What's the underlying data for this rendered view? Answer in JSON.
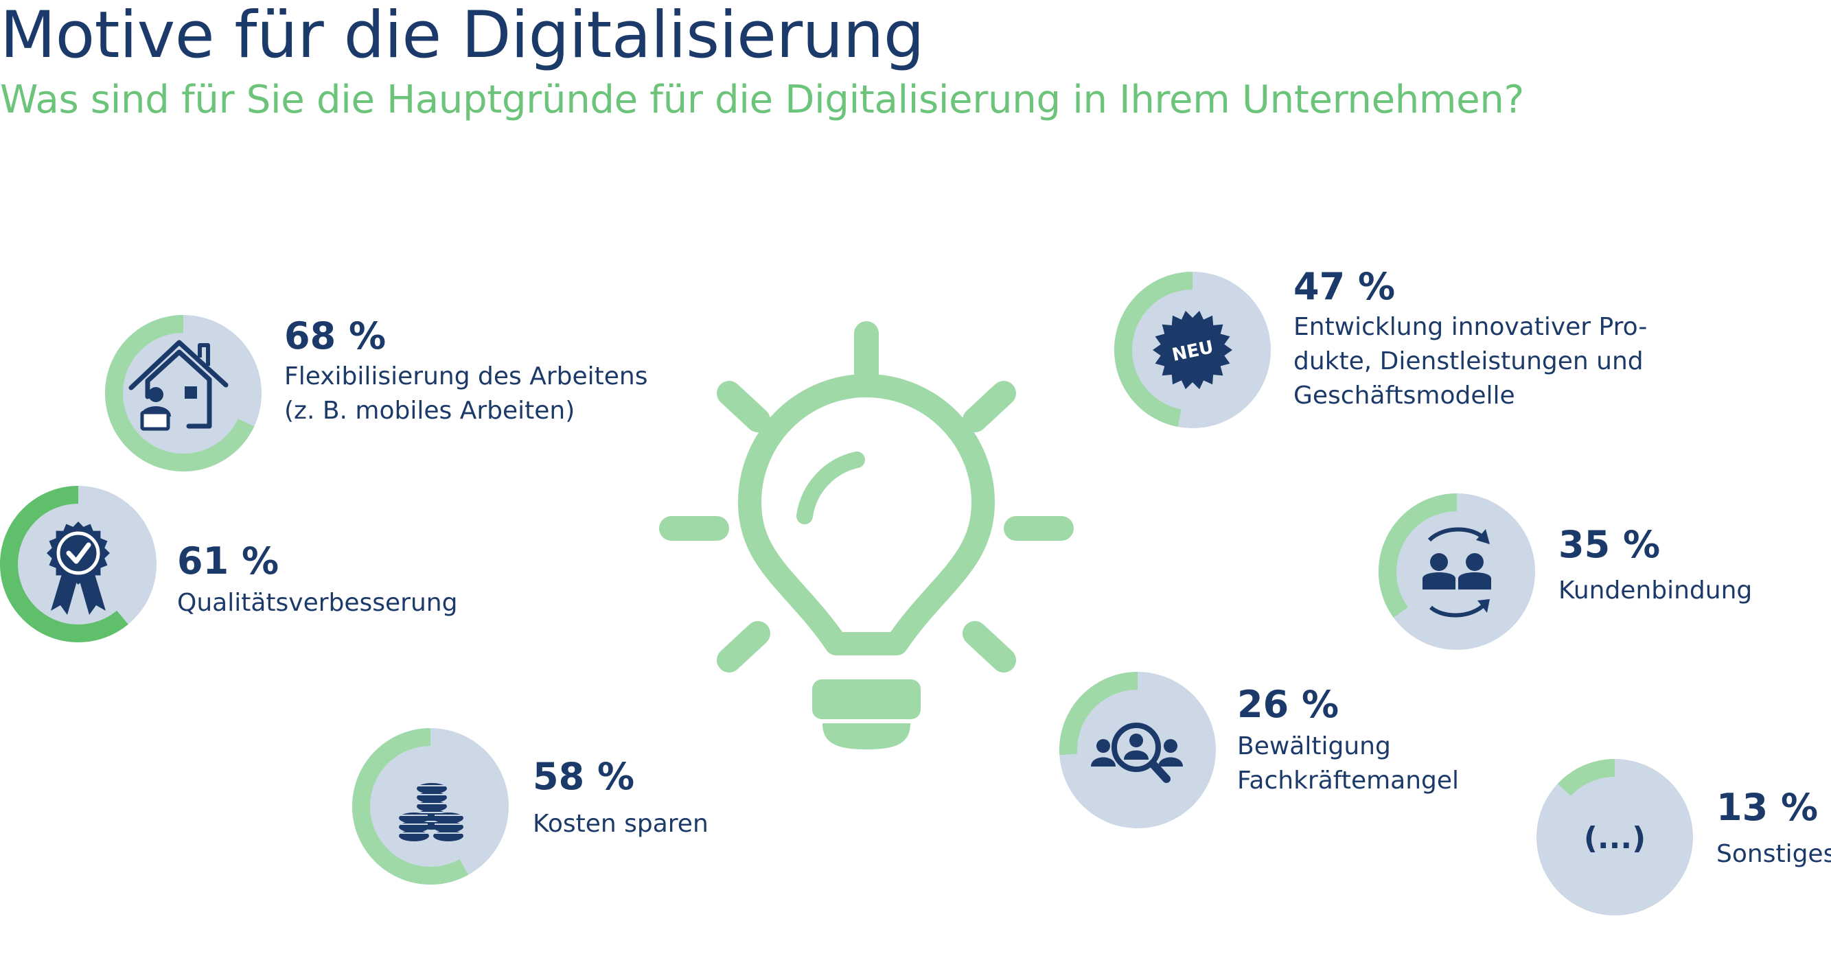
{
  "header": {
    "title": "Motive für die Digitalisierung",
    "subtitle": "Was sind für Sie die Hauptgründe für die Digitalisierung in Ihrem Unternehmen?"
  },
  "colors": {
    "navy": "#1c3a69",
    "ring_track": "#cdd8e6",
    "ring_fill": "#9fd9a8",
    "ring_fill_strong": "#5fbf6b",
    "bulb": "#9fd9a8",
    "subtitle": "#6cc47a"
  },
  "icons": {
    "bulb": "lightbulb-icon"
  },
  "chart_data": {
    "type": "donut",
    "items": [
      {
        "key": "flex",
        "value": 68,
        "value_label": "68 %",
        "label_lines": [
          "Flexibilisierung des Arbeitens",
          "(z. B. mobiles Arbeiten)"
        ],
        "icon": "home-office-icon"
      },
      {
        "key": "quality",
        "value": 61,
        "value_label": "61 %",
        "label_lines": [
          "Qualitätsverbesserung"
        ],
        "icon": "award-badge-icon"
      },
      {
        "key": "costs",
        "value": 58,
        "value_label": "58 %",
        "label_lines": [
          "Kosten sparen"
        ],
        "icon": "coin-stacks-icon"
      },
      {
        "key": "innovation",
        "value": 47,
        "value_label": "47 %",
        "label_lines": [
          "Entwicklung innovativer Pro-",
          "dukte, Dienstleistungen und",
          "Geschäftsmodelle"
        ],
        "icon": "new-badge-icon",
        "icon_text": "NEU"
      },
      {
        "key": "retention",
        "value": 35,
        "value_label": "35 %",
        "label_lines": [
          "Kundenbindung"
        ],
        "icon": "customer-exchange-icon"
      },
      {
        "key": "skills",
        "value": 26,
        "value_label": "26 %",
        "label_lines": [
          "Bewältigung",
          "Fachkräftemangel"
        ],
        "icon": "talent-search-icon"
      },
      {
        "key": "other",
        "value": 13,
        "value_label": "13 %",
        "label_lines": [
          "Sonstiges"
        ],
        "icon": "ellipsis-icon",
        "icon_text": "(...)"
      }
    ]
  }
}
